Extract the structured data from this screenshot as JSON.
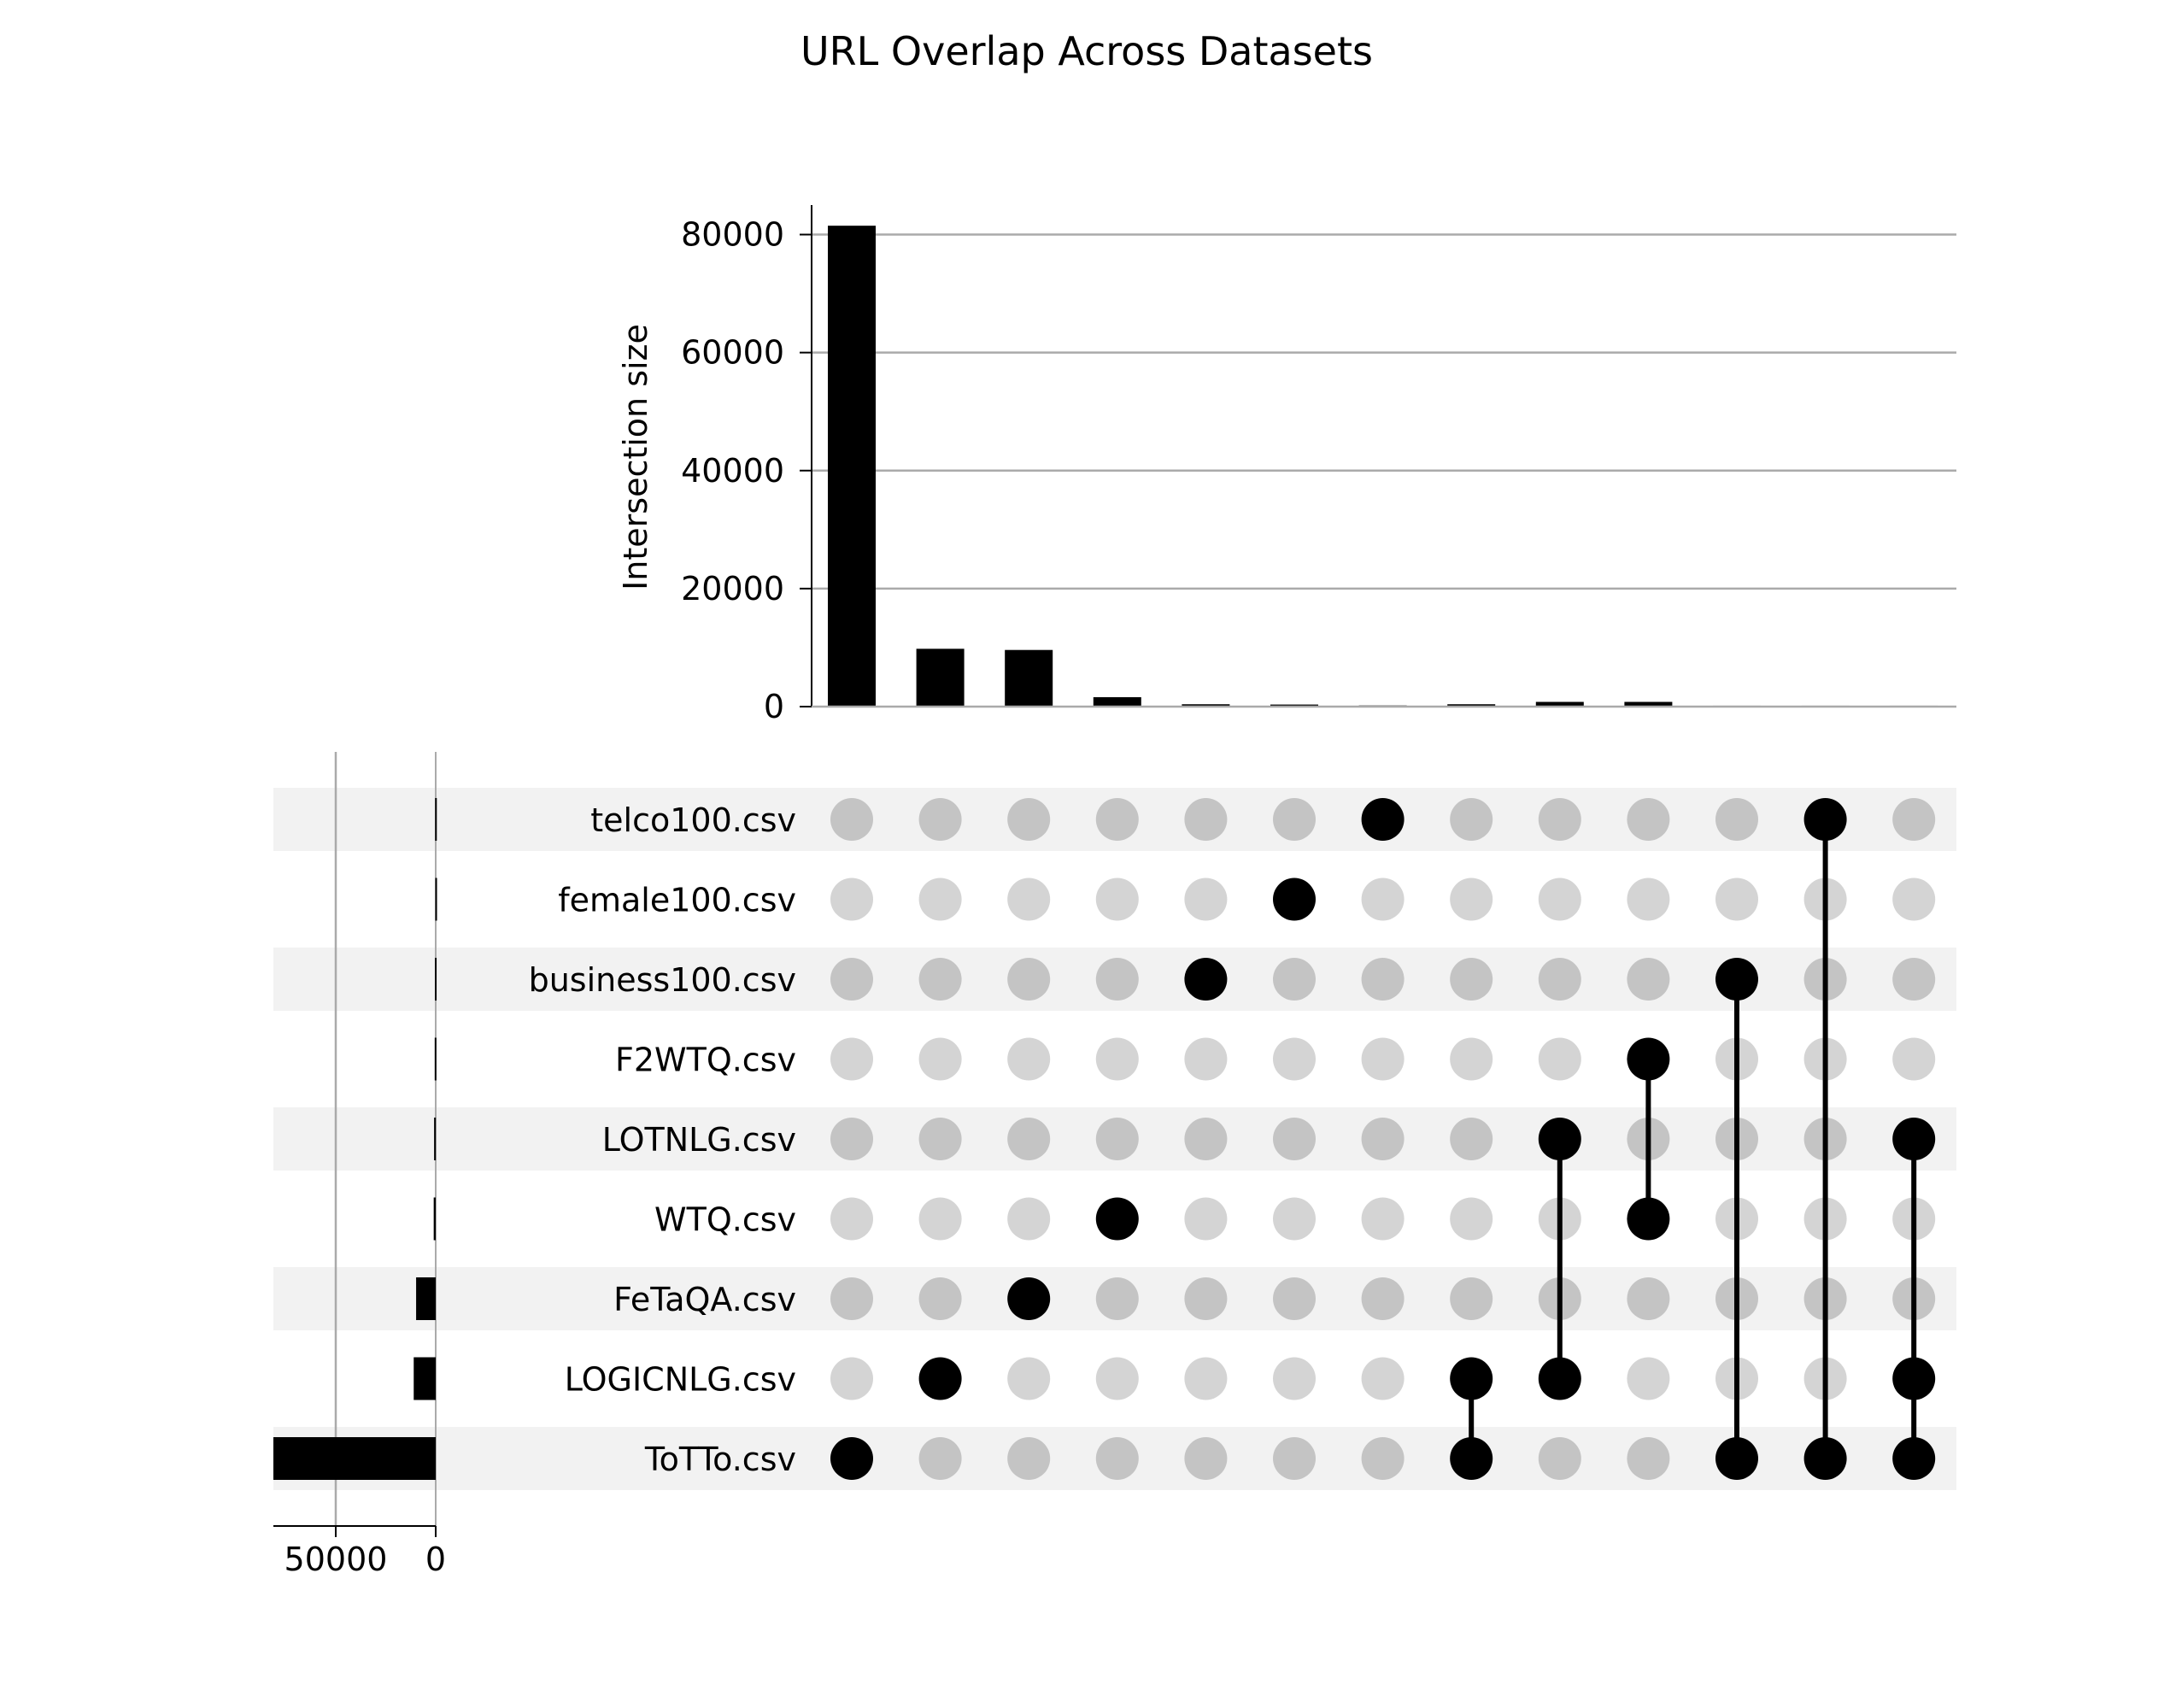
{
  "chart_data": {
    "type": "upset",
    "title": "URL Overlap Across Datasets",
    "ylabel": "Intersection size",
    "ylim": [
      0,
      85000
    ],
    "yticks": [
      0,
      20000,
      40000,
      60000,
      80000
    ],
    "grid": true,
    "sets": [
      "telco100.csv",
      "female100.csv",
      "business100.csv",
      "F2WTQ.csv",
      "LOTNLG.csv",
      "WTQ.csv",
      "FeTaQA.csv",
      "LOGICNLG.csv",
      "ToTTo.csv"
    ],
    "set_sizes": [
      300,
      200,
      400,
      500,
      800,
      1000,
      9800,
      11000,
      81500
    ],
    "set_size_ticks": [
      50000,
      0
    ],
    "intersections": [
      {
        "sets": [
          "ToTTo.csv"
        ],
        "value": 81500
      },
      {
        "sets": [
          "LOGICNLG.csv"
        ],
        "value": 9800
      },
      {
        "sets": [
          "FeTaQA.csv"
        ],
        "value": 9600
      },
      {
        "sets": [
          "WTQ.csv"
        ],
        "value": 1600
      },
      {
        "sets": [
          "business100.csv"
        ],
        "value": 400
      },
      {
        "sets": [
          "female100.csv"
        ],
        "value": 350
      },
      {
        "sets": [
          "telco100.csv"
        ],
        "value": 200
      },
      {
        "sets": [
          "LOGICNLG.csv",
          "ToTTo.csv"
        ],
        "value": 400
      },
      {
        "sets": [
          "LOTNLG.csv",
          "LOGICNLG.csv"
        ],
        "value": 800
      },
      {
        "sets": [
          "F2WTQ.csv",
          "WTQ.csv"
        ],
        "value": 800
      },
      {
        "sets": [
          "business100.csv",
          "ToTTo.csv"
        ],
        "value": 150
      },
      {
        "sets": [
          "telco100.csv",
          "ToTTo.csv"
        ],
        "value": 150
      },
      {
        "sets": [
          "LOTNLG.csv",
          "LOGICNLG.csv",
          "ToTTo.csv"
        ],
        "value": 150
      }
    ],
    "colors": {
      "bar": "#000000",
      "dot_active": "#000000",
      "dot_inactive_dark": "#c4c4c4",
      "dot_inactive_light": "#d4d4d4",
      "row_stripe": "#f2f2f2",
      "grid": "#aaaaaa"
    }
  }
}
